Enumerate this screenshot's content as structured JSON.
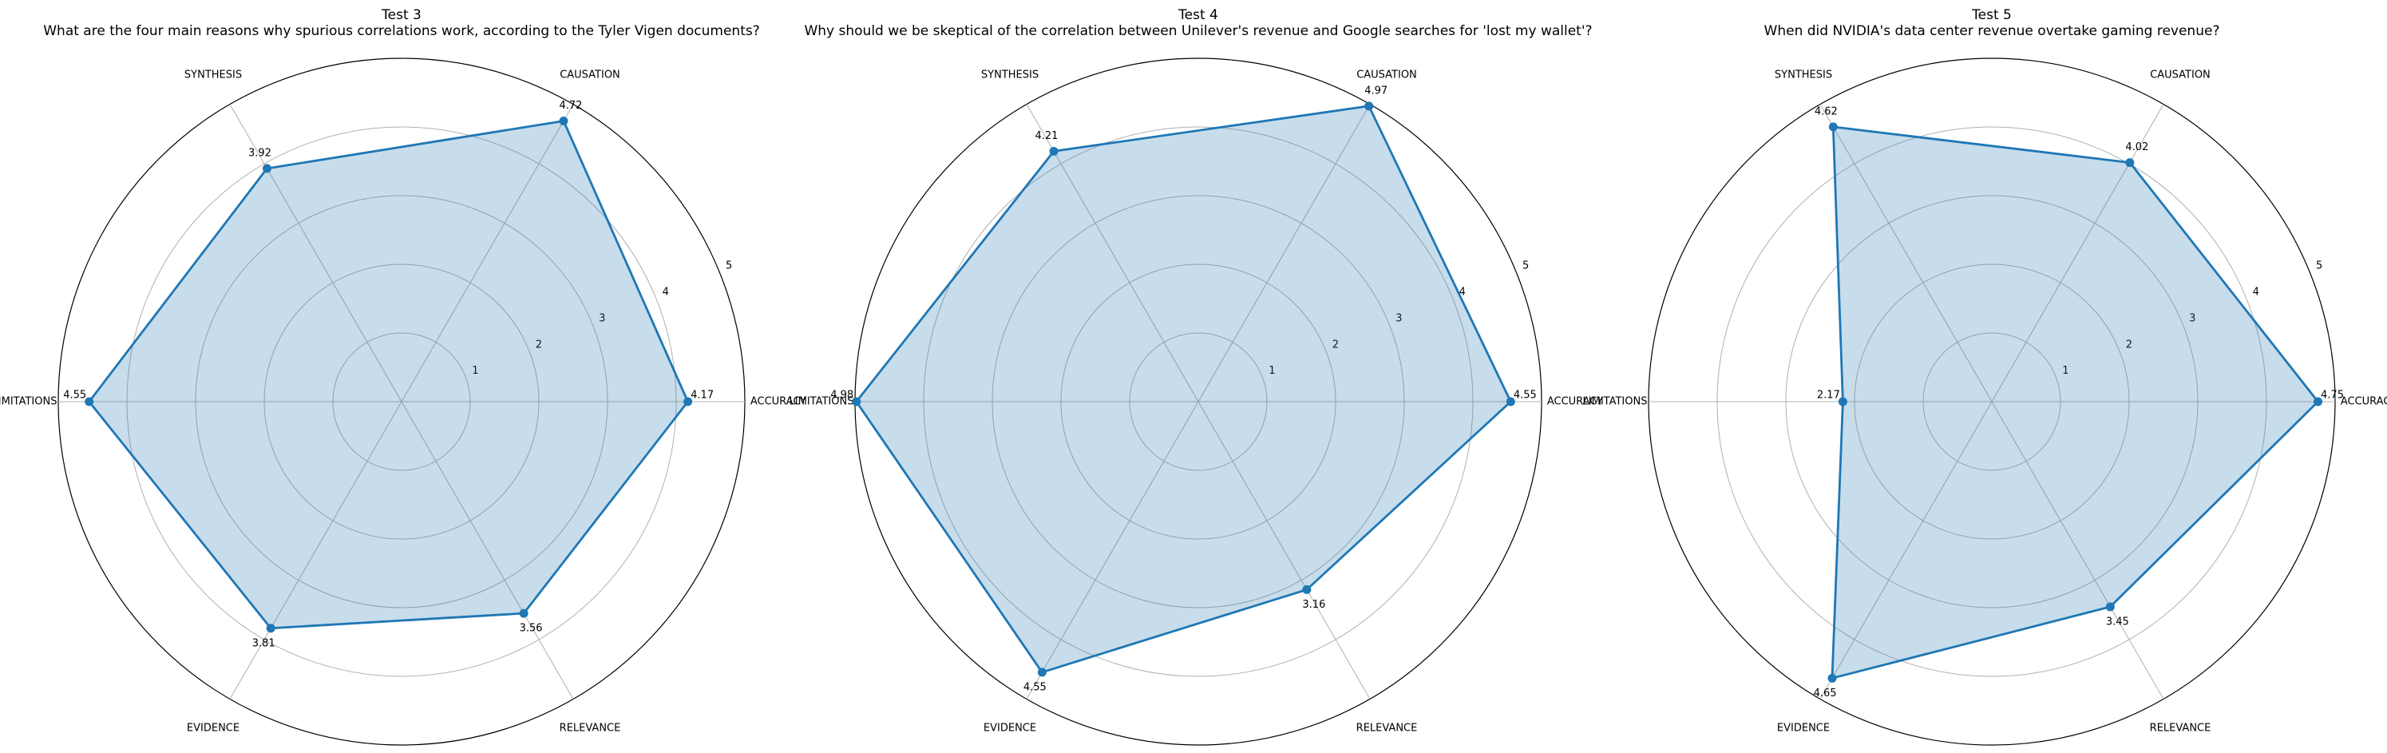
{
  "chart_data": [
    {
      "type": "radar",
      "title": "Test 3",
      "subtitle": "What are the four main reasons why spurious correlations work, according to the Tyler Vigen documents?",
      "categories": [
        "ACCURACY",
        "CAUSATION",
        "SYNTHESIS",
        "LIMITATIONS",
        "EVIDENCE",
        "RELEVANCE"
      ],
      "values": [
        4.17,
        4.72,
        3.92,
        4.55,
        3.81,
        3.56
      ],
      "value_labels": [
        "4.17",
        "4.72",
        "3.92",
        "4.55",
        "3.81",
        "3.56"
      ],
      "rlim": [
        0,
        5
      ],
      "rticks": [
        1,
        2,
        3,
        4,
        5
      ],
      "grid": true
    },
    {
      "type": "radar",
      "title": "Test 4",
      "subtitle": "Why should we be skeptical of the correlation between Unilever's revenue and Google searches for 'lost my wallet'?",
      "categories": [
        "ACCURACY",
        "CAUSATION",
        "SYNTHESIS",
        "LIMITATIONS",
        "EVIDENCE",
        "RELEVANCE"
      ],
      "values": [
        4.55,
        4.97,
        4.21,
        4.98,
        4.55,
        3.16
      ],
      "value_labels": [
        "4.55",
        "4.97",
        "4.21",
        "4.98",
        "4.55",
        "3.16"
      ],
      "rlim": [
        0,
        5
      ],
      "rticks": [
        1,
        2,
        3,
        4,
        5
      ],
      "grid": true
    },
    {
      "type": "radar",
      "title": "Test 5",
      "subtitle": "When did NVIDIA's data center revenue overtake gaming revenue?",
      "categories": [
        "ACCURACY",
        "CAUSATION",
        "SYNTHESIS",
        "LIMITATIONS",
        "EVIDENCE",
        "RELEVANCE"
      ],
      "values": [
        4.75,
        4.02,
        4.62,
        2.17,
        4.65,
        3.45
      ],
      "value_labels": [
        "4.75",
        "4.02",
        "4.62",
        "2.17",
        "4.65",
        "3.45"
      ],
      "rlim": [
        0,
        5
      ],
      "rticks": [
        1,
        2,
        3,
        4,
        5
      ],
      "grid": true
    }
  ],
  "colors": {
    "series": "#1f77b4",
    "grid": "#b0b0b0",
    "frame": "#000000"
  }
}
